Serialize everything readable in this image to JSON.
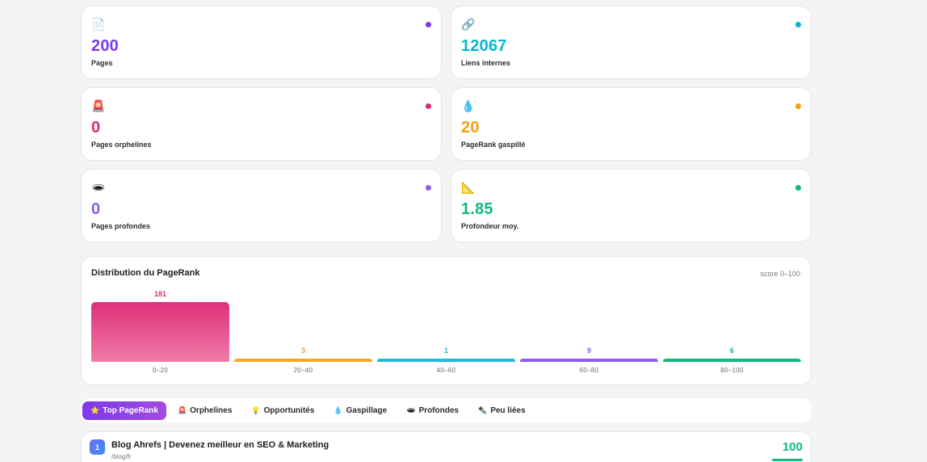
{
  "stats": [
    {
      "icon": "📄",
      "icon_name": "page-icon",
      "value": "200",
      "label": "Pages",
      "color": "#7c3aed"
    },
    {
      "icon": "🔗",
      "icon_name": "link-icon",
      "value": "12067",
      "label": "Liens internes",
      "color": "#06b6d4"
    },
    {
      "icon": "🚨",
      "icon_name": "alarm-icon",
      "value": "0",
      "label": "Pages orphelines",
      "color": "#db2777"
    },
    {
      "icon": "💧",
      "icon_name": "droplet-icon",
      "value": "20",
      "label": "PageRank gaspillé",
      "color": "#f59e0b"
    },
    {
      "icon": "🕳",
      "icon_name": "hole-icon",
      "value": "0",
      "label": "Pages profondes",
      "color": "#8b5cf6"
    },
    {
      "icon": "📐",
      "icon_name": "triangle-ruler-icon",
      "value": "1.85",
      "label": "Profondeur moy.",
      "color": "#10b981"
    }
  ],
  "distribution": {
    "title": "Distribution du PageRank",
    "hint": "score 0–100"
  },
  "chart_data": {
    "type": "bar",
    "title": "Distribution du PageRank",
    "categories": [
      "0–20",
      "20–40",
      "40–60",
      "60–80",
      "80–100"
    ],
    "values": [
      181,
      3,
      1,
      9,
      6
    ],
    "colors": [
      "#e0307a",
      "#f5a623",
      "#22b8d8",
      "#8b5cf6",
      "#10b981"
    ]
  },
  "tabs": [
    {
      "icon": "⭐",
      "icon_name": "star-icon",
      "label": "Top PageRank",
      "active": true
    },
    {
      "icon": "🚨",
      "icon_name": "alarm-icon",
      "label": "Orphelines",
      "active": false
    },
    {
      "icon": "💡",
      "icon_name": "lightbulb-icon",
      "label": "Opportunités",
      "active": false
    },
    {
      "icon": "💧",
      "icon_name": "droplet-icon",
      "label": "Gaspillage",
      "active": false
    },
    {
      "icon": "🕳",
      "icon_name": "hole-icon",
      "label": "Profondes",
      "active": false
    },
    {
      "icon": "✒️",
      "icon_name": "pen-icon",
      "label": "Peu liées",
      "active": false
    }
  ],
  "results": [
    {
      "rank": "1",
      "title": "Blog Ahrefs | Devenez meilleur en SEO & Marketing",
      "url": "/blog/fr",
      "score": "100"
    }
  ]
}
